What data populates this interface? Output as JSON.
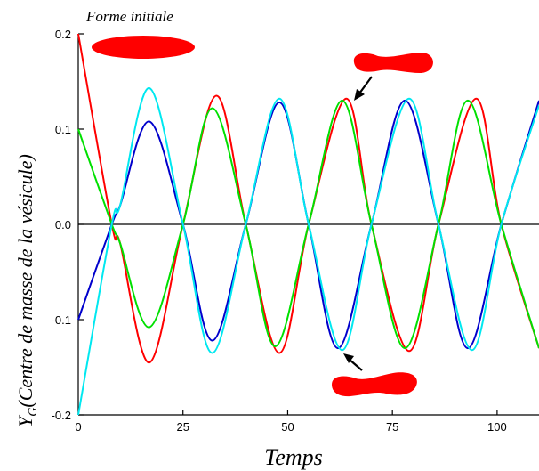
{
  "chart_data": {
    "type": "line",
    "title": "",
    "xlabel": "Temps",
    "ylabel_main": "Y",
    "ylabel_sub": "G",
    "ylabel_rest": "(Centre de masse de la vésicule)",
    "xlim": [
      0,
      110
    ],
    "ylim": [
      -0.2,
      0.2
    ],
    "xticks": [
      0,
      25,
      50,
      75,
      100
    ],
    "xtick_labels": [
      "0",
      "25",
      "50",
      "75",
      "100"
    ],
    "yticks": [
      0.2,
      0.1,
      0.0,
      -0.1,
      -0.2
    ],
    "ytick_labels": [
      "0.2",
      "0.1",
      "0.0",
      "-0.1",
      "-0.2"
    ],
    "annotation": "Forme initiale",
    "colors": {
      "red": "#ff0000",
      "green": "#00e000",
      "blue": "#0000cc",
      "cyan": "#00e8f0",
      "zero_line": "#000000",
      "shape": "#ff0000"
    },
    "series": [
      {
        "color_key": "red",
        "x": [
          0,
          8,
          10,
          17,
          25,
          33,
          40,
          48,
          55,
          64,
          70,
          79,
          86,
          95,
          101,
          110
        ],
        "y": [
          0.2,
          0.0,
          -0.02,
          -0.145,
          0.0,
          0.135,
          0.0,
          -0.135,
          0.0,
          0.132,
          0.0,
          -0.133,
          0.0,
          0.132,
          0.0,
          -0.13
        ]
      },
      {
        "color_key": "green",
        "x": [
          0,
          8,
          10,
          17,
          25,
          32,
          40,
          47,
          55,
          63,
          70,
          78,
          86,
          93,
          101,
          110
        ],
        "y": [
          0.1,
          0.0,
          -0.02,
          -0.108,
          0.0,
          0.122,
          0.0,
          -0.128,
          0.0,
          0.13,
          0.0,
          -0.13,
          0.0,
          0.13,
          0.0,
          -0.13
        ]
      },
      {
        "color_key": "blue",
        "x": [
          0,
          8,
          10,
          17,
          25,
          32,
          40,
          48,
          55,
          62,
          70,
          78,
          86,
          93,
          101,
          110
        ],
        "y": [
          -0.1,
          0.0,
          0.02,
          0.108,
          0.0,
          -0.122,
          0.0,
          0.128,
          0.0,
          -0.13,
          0.0,
          0.13,
          0.0,
          -0.13,
          0.0,
          0.13
        ]
      },
      {
        "color_key": "cyan",
        "x": [
          0,
          8,
          10,
          17,
          25,
          32,
          40,
          48,
          55,
          63,
          70,
          79,
          86,
          94,
          101,
          110
        ],
        "y": [
          -0.2,
          0.0,
          0.02,
          0.143,
          0.0,
          -0.135,
          0.0,
          0.132,
          0.0,
          -0.132,
          0.0,
          0.132,
          0.0,
          -0.132,
          0.0,
          0.125
        ]
      }
    ]
  }
}
